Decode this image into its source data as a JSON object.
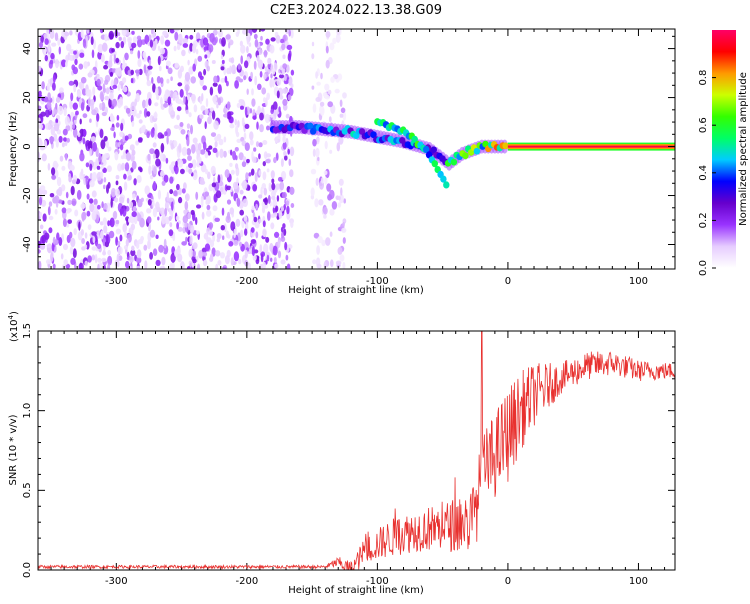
{
  "title": "C2E3.2024.022.13.38.G09",
  "chart_data": [
    {
      "type": "heatmap",
      "xlabel": "Height of straight line (km)",
      "ylabel": "Frequency (Hz)",
      "xlim": [
        -360,
        128
      ],
      "ylim": [
        -50,
        48
      ],
      "xticks": [
        -300,
        -200,
        -100,
        0,
        100
      ],
      "yticks": [
        -40,
        -20,
        0,
        20,
        40
      ],
      "colorbar": {
        "label": "Normalized spectral amplitude",
        "range": [
          0.0,
          1.0
        ],
        "ticks": [
          "0.0",
          "0.2",
          "0.4",
          "0.6",
          "0.8"
        ],
        "colormap": [
          "#ffffff",
          "#e6ccff",
          "#9933ff",
          "#6600cc",
          "#0000ff",
          "#00ccff",
          "#00ff66",
          "#33ff00",
          "#ccff00",
          "#ff9900",
          "#ff0000",
          "#ff0066"
        ]
      },
      "regions": [
        {
          "name": "scattered noise",
          "x_range": [
            -360,
            -165
          ],
          "y_range": [
            -50,
            48
          ],
          "amplitude": [
            0.05,
            0.25
          ]
        },
        {
          "name": "sparse noise",
          "x_range": [
            -150,
            -125
          ],
          "y_range": [
            -50,
            48
          ],
          "amplitude": [
            0.03,
            0.15
          ]
        }
      ],
      "signal_track": {
        "main": [
          [
            -180,
            8
          ],
          [
            -160,
            8
          ],
          [
            -140,
            7
          ],
          [
            -120,
            6
          ],
          [
            -100,
            4
          ],
          [
            -80,
            2
          ],
          [
            -60,
            -1
          ],
          [
            -45,
            -7
          ],
          [
            -35,
            -3
          ],
          [
            -20,
            0
          ],
          [
            0,
            0
          ],
          [
            128,
            0
          ]
        ],
        "branch": [
          [
            -100,
            10
          ],
          [
            -80,
            6
          ],
          [
            -65,
            0
          ],
          [
            -55,
            -8
          ],
          [
            -45,
            -17
          ]
        ],
        "amplitude_along": [
          [
            -180,
            0.35
          ],
          [
            -120,
            0.45
          ],
          [
            -60,
            0.45
          ],
          [
            -20,
            0.7
          ],
          [
            0,
            0.85
          ],
          [
            128,
            0.95
          ]
        ]
      }
    },
    {
      "type": "line",
      "xlabel": "Height of straight line (km)",
      "ylabel": "SNR (10 * v/v)",
      "scale_label": "(x10",
      "scale_exp": "4",
      "scale_close": ")",
      "xlim": [
        -360,
        128
      ],
      "ylim": [
        0,
        1.5
      ],
      "xticks": [
        -300,
        -200,
        -100,
        0,
        100
      ],
      "yticks": [
        "0.0",
        "0.5",
        "1.0",
        "1.5"
      ],
      "series": [
        {
          "name": "SNR",
          "color": "#e8312f",
          "baseline": [
            [
              -360,
              0.02
            ],
            [
              -140,
              0.02
            ],
            [
              -130,
              0.05
            ],
            [
              -120,
              0.0
            ],
            [
              -110,
              0.12
            ],
            [
              -90,
              0.2
            ],
            [
              -70,
              0.25
            ],
            [
              -50,
              0.27
            ],
            [
              -30,
              0.3
            ],
            [
              -25,
              0.35
            ],
            [
              -20,
              0.6
            ],
            [
              -10,
              0.72
            ],
            [
              0,
              0.85
            ],
            [
              10,
              1.0
            ],
            [
              20,
              1.1
            ],
            [
              40,
              1.2
            ],
            [
              60,
              1.28
            ],
            [
              80,
              1.3
            ],
            [
              100,
              1.25
            ],
            [
              128,
              1.25
            ]
          ],
          "noise_amplitude": [
            [
              -360,
              0.01
            ],
            [
              -140,
              0.01
            ],
            [
              -110,
              0.08
            ],
            [
              -90,
              0.12
            ],
            [
              -50,
              0.15
            ],
            [
              -30,
              0.2
            ],
            [
              -20,
              0.25
            ],
            [
              0,
              0.3
            ],
            [
              20,
              0.2
            ],
            [
              40,
              0.1
            ],
            [
              80,
              0.08
            ],
            [
              128,
              0.05
            ]
          ],
          "spike": [
            -20,
            1.5
          ]
        }
      ]
    }
  ]
}
